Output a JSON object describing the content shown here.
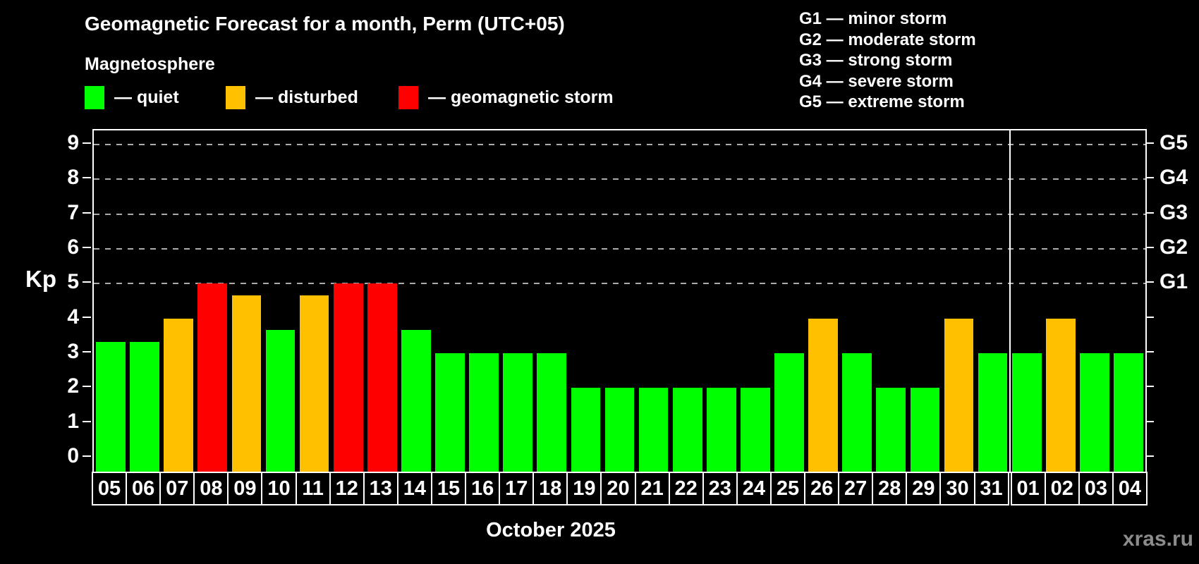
{
  "header": {
    "title": "Geomagnetic Forecast for a month, Perm (UTC+05)",
    "subtitle": "Magnetosphere"
  },
  "legend": {
    "items": [
      {
        "label": "— quiet",
        "status": "quiet",
        "color": "#00ff00"
      },
      {
        "label": "— disturbed",
        "status": "disturbed",
        "color": "#ffc000"
      },
      {
        "label": "— geomagnetic storm",
        "status": "storm",
        "color": "#ff0000"
      }
    ]
  },
  "storm_scale": {
    "lines": [
      "G1 — minor storm",
      "G2 — moderate storm",
      "G3 — strong storm",
      "G4 — severe storm",
      "G5 — extreme storm"
    ]
  },
  "footer": {
    "caption": "October 2025",
    "watermark": "xras.ru"
  },
  "chart_data": {
    "type": "bar",
    "title": "Geomagnetic Forecast for a month, Perm (UTC+05)",
    "ylabel": "Kp",
    "xlabel": "October 2025",
    "ylim": [
      -0.4,
      9.4
    ],
    "yticks": [
      0,
      1,
      2,
      3,
      4,
      5,
      6,
      7,
      8,
      9
    ],
    "gridlines": [
      5,
      6,
      7,
      8,
      9
    ],
    "grid": "dashed horizontal lines at Kp 5 through 9",
    "legend_position": "top",
    "right_axis": {
      "labels": [
        {
          "value": 5,
          "label": "G1"
        },
        {
          "value": 6,
          "label": "G2"
        },
        {
          "value": 7,
          "label": "G3"
        },
        {
          "value": 8,
          "label": "G4"
        },
        {
          "value": 9,
          "label": "G5"
        }
      ]
    },
    "colors": {
      "quiet": "#00ff00",
      "disturbed": "#ffc000",
      "storm": "#ff0000"
    },
    "month_separator_after_index": 26,
    "categories": [
      "05",
      "06",
      "07",
      "08",
      "09",
      "10",
      "11",
      "12",
      "13",
      "14",
      "15",
      "16",
      "17",
      "18",
      "19",
      "20",
      "21",
      "22",
      "23",
      "24",
      "25",
      "26",
      "27",
      "28",
      "29",
      "30",
      "31",
      "01",
      "02",
      "03",
      "04"
    ],
    "series": [
      {
        "name": "Kp forecast",
        "points": [
          {
            "day": "05",
            "value": 3.33,
            "status": "quiet"
          },
          {
            "day": "06",
            "value": 3.33,
            "status": "quiet"
          },
          {
            "day": "07",
            "value": 4.0,
            "status": "disturbed"
          },
          {
            "day": "08",
            "value": 5.0,
            "status": "storm"
          },
          {
            "day": "09",
            "value": 4.67,
            "status": "disturbed"
          },
          {
            "day": "10",
            "value": 3.67,
            "status": "quiet"
          },
          {
            "day": "11",
            "value": 4.67,
            "status": "disturbed"
          },
          {
            "day": "12",
            "value": 5.0,
            "status": "storm"
          },
          {
            "day": "13",
            "value": 5.0,
            "status": "storm"
          },
          {
            "day": "14",
            "value": 3.67,
            "status": "quiet"
          },
          {
            "day": "15",
            "value": 3.0,
            "status": "quiet"
          },
          {
            "day": "16",
            "value": 3.0,
            "status": "quiet"
          },
          {
            "day": "17",
            "value": 3.0,
            "status": "quiet"
          },
          {
            "day": "18",
            "value": 3.0,
            "status": "quiet"
          },
          {
            "day": "19",
            "value": 2.0,
            "status": "quiet"
          },
          {
            "day": "20",
            "value": 2.0,
            "status": "quiet"
          },
          {
            "day": "21",
            "value": 2.0,
            "status": "quiet"
          },
          {
            "day": "22",
            "value": 2.0,
            "status": "quiet"
          },
          {
            "day": "23",
            "value": 2.0,
            "status": "quiet"
          },
          {
            "day": "24",
            "value": 2.0,
            "status": "quiet"
          },
          {
            "day": "25",
            "value": 3.0,
            "status": "quiet"
          },
          {
            "day": "26",
            "value": 4.0,
            "status": "disturbed"
          },
          {
            "day": "27",
            "value": 3.0,
            "status": "quiet"
          },
          {
            "day": "28",
            "value": 2.0,
            "status": "quiet"
          },
          {
            "day": "29",
            "value": 2.0,
            "status": "quiet"
          },
          {
            "day": "30",
            "value": 4.0,
            "status": "disturbed"
          },
          {
            "day": "31",
            "value": 3.0,
            "status": "quiet"
          },
          {
            "day": "01",
            "value": 3.0,
            "status": "quiet"
          },
          {
            "day": "02",
            "value": 4.0,
            "status": "disturbed"
          },
          {
            "day": "03",
            "value": 3.0,
            "status": "quiet"
          },
          {
            "day": "04",
            "value": 3.0,
            "status": "quiet"
          }
        ]
      }
    ]
  }
}
